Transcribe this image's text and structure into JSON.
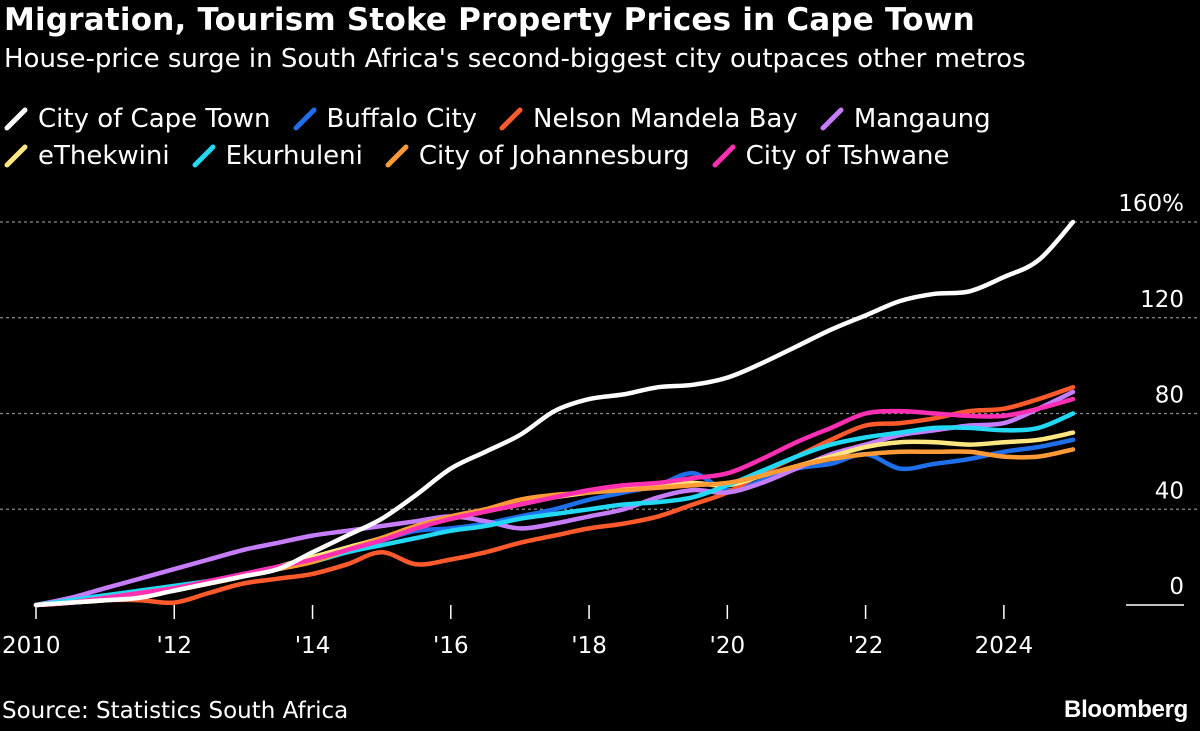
{
  "title": "Migration, Tourism Stoke Property Prices in Cape Town",
  "subtitle": "House-price surge in South Africa's second-biggest city outpaces other metros",
  "source": "Source: Statistics South Africa",
  "brand": "Bloomberg",
  "legend": [
    {
      "label": "City of Cape Town",
      "color": "#ffffff"
    },
    {
      "label": "Buffalo City",
      "color": "#1f6feb"
    },
    {
      "label": "Nelson Mandela Bay",
      "color": "#ff5a2b"
    },
    {
      "label": "Mangaung",
      "color": "#c67dfb"
    },
    {
      "label": "eThekwini",
      "color": "#ffe680"
    },
    {
      "label": "Ekurhuleni",
      "color": "#22d8f2"
    },
    {
      "label": "City of Johannesburg",
      "color": "#ff9b36"
    },
    {
      "label": "City of Tshwane",
      "color": "#ff2fb3"
    }
  ],
  "chart_data": {
    "type": "line",
    "title": "Migration, Tourism Stoke Property Prices in Cape Town",
    "subtitle": "House-price surge in South Africa's second-biggest city outpaces other metros",
    "xlabel": "",
    "ylabel": "",
    "y_unit": "%",
    "xlim": [
      2010.0,
      2025.0
    ],
    "ylim": [
      0,
      160
    ],
    "x_ticks": [
      2010,
      2012,
      2014,
      2016,
      2018,
      2020,
      2022,
      2024
    ],
    "x_tick_labels": [
      "2010",
      "'12",
      "'14",
      "'16",
      "'18",
      "'20",
      "'22",
      "2024"
    ],
    "y_ticks": [
      0,
      40,
      80,
      120,
      160
    ],
    "y_tick_labels": [
      "0",
      "40",
      "80",
      "120",
      "160%"
    ],
    "grid": "horizontal dotted",
    "legend_position": "top",
    "x": [
      2010.0,
      2010.5,
      2011.0,
      2011.5,
      2012.0,
      2012.5,
      2013.0,
      2013.5,
      2014.0,
      2014.5,
      2015.0,
      2015.5,
      2016.0,
      2016.5,
      2017.0,
      2017.5,
      2018.0,
      2018.5,
      2019.0,
      2019.5,
      2020.0,
      2020.5,
      2021.0,
      2021.5,
      2022.0,
      2022.5,
      2023.0,
      2023.5,
      2024.0,
      2024.5,
      2025.0
    ],
    "series": [
      {
        "name": "City of Cape Town",
        "color": "#ffffff",
        "values": [
          0,
          1,
          2,
          3,
          6,
          9,
          12,
          15,
          22,
          29,
          36,
          46,
          57,
          64,
          71,
          81,
          86,
          88,
          91,
          92,
          95,
          101,
          108,
          115,
          121,
          127,
          130,
          131,
          137,
          144,
          160
        ]
      },
      {
        "name": "Buffalo City",
        "color": "#1f6feb",
        "values": [
          0,
          2,
          4,
          5,
          7,
          10,
          13,
          16,
          19,
          23,
          27,
          31,
          32,
          34,
          37,
          40,
          44,
          47,
          50,
          55,
          48,
          52,
          57,
          59,
          63,
          57,
          59,
          61,
          64,
          66,
          69
        ]
      },
      {
        "name": "Nelson Mandela Bay",
        "color": "#ff5a2b",
        "values": [
          0,
          1,
          2,
          2,
          1,
          5,
          9,
          11,
          13,
          17,
          22,
          17,
          19,
          22,
          26,
          29,
          32,
          34,
          37,
          42,
          47,
          55,
          62,
          69,
          75,
          76,
          78,
          81,
          82,
          86,
          91
        ]
      },
      {
        "name": "Mangaung",
        "color": "#c67dfb",
        "values": [
          0,
          3,
          7,
          11,
          15,
          19,
          23,
          26,
          29,
          31,
          33,
          35,
          37,
          35,
          32,
          34,
          37,
          40,
          45,
          48,
          47,
          51,
          57,
          63,
          67,
          71,
          73,
          75,
          76,
          82,
          89
        ]
      },
      {
        "name": "eThekwini",
        "color": "#ffe680",
        "values": [
          0,
          1,
          2,
          4,
          6,
          9,
          12,
          16,
          20,
          24,
          28,
          33,
          36,
          39,
          42,
          45,
          47,
          49,
          50,
          51,
          50,
          54,
          58,
          62,
          66,
          68,
          68,
          67,
          68,
          69,
          72
        ]
      },
      {
        "name": "Ekurhuleni",
        "color": "#22d8f2",
        "values": [
          0,
          2,
          4,
          6,
          8,
          10,
          12,
          15,
          18,
          22,
          25,
          28,
          31,
          33,
          36,
          38,
          40,
          42,
          43,
          45,
          50,
          56,
          62,
          67,
          70,
          72,
          74,
          74,
          73,
          74,
          80
        ]
      },
      {
        "name": "City of Johannesburg",
        "color": "#ff9b36",
        "values": [
          0,
          1,
          3,
          5,
          7,
          9,
          12,
          15,
          18,
          23,
          28,
          33,
          37,
          40,
          44,
          46,
          47,
          48,
          49,
          50,
          51,
          54,
          58,
          61,
          63,
          64,
          64,
          64,
          62,
          62,
          65
        ]
      },
      {
        "name": "City of Tshwane",
        "color": "#ff2fb3",
        "values": [
          0,
          1,
          3,
          5,
          7,
          10,
          13,
          16,
          19,
          23,
          27,
          32,
          36,
          39,
          42,
          45,
          48,
          50,
          51,
          53,
          55,
          61,
          68,
          74,
          80,
          81,
          80,
          79,
          79,
          82,
          86
        ]
      }
    ]
  }
}
